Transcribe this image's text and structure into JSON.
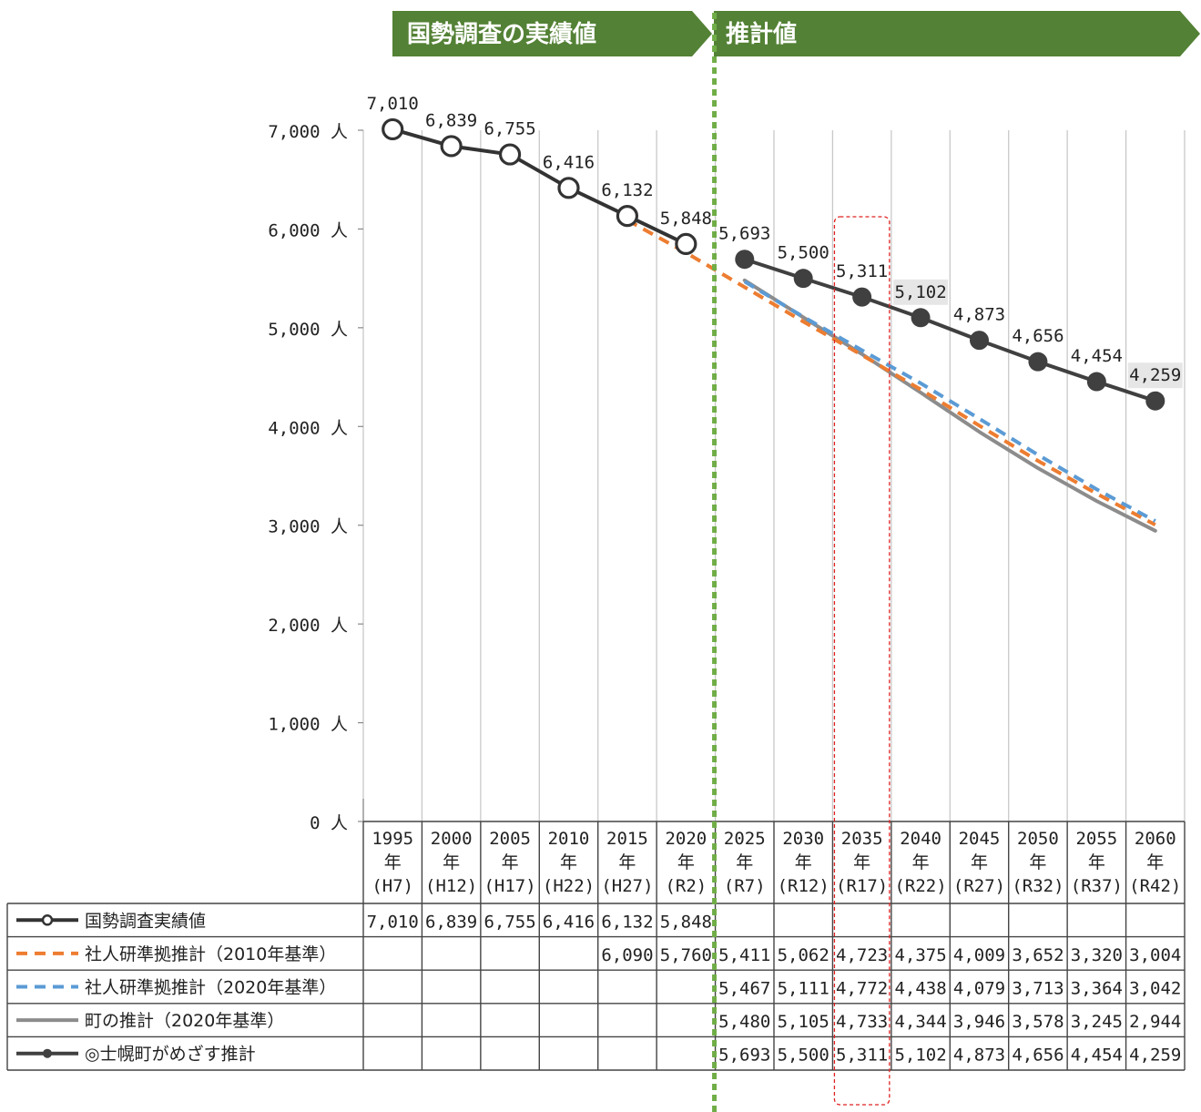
{
  "banners": {
    "actual": "国勢調査の実績値",
    "estimate": "推計値"
  },
  "colors": {
    "banner_green": "#538135",
    "divider_green": "#70ad47",
    "actual_line": "#333333",
    "ipss_2010": "#ed7d31",
    "ipss_2020": "#5b9bd5",
    "town_estimate": "#8c8c8c",
    "target_line": "#404040",
    "highlight_box": "#e02020",
    "grid": "#c8c8c8"
  },
  "chart_data": {
    "type": "line",
    "x": [
      "1995",
      "2000",
      "2005",
      "2010",
      "2015",
      "2020",
      "2025",
      "2030",
      "2035",
      "2040",
      "2045",
      "2050",
      "2055",
      "2060"
    ],
    "categories": [
      {
        "year": "1995",
        "unit": "年",
        "era": "(H7)"
      },
      {
        "year": "2000",
        "unit": "年",
        "era": "(H12)"
      },
      {
        "year": "2005",
        "unit": "年",
        "era": "(H17)"
      },
      {
        "year": "2010",
        "unit": "年",
        "era": "(H22)"
      },
      {
        "year": "2015",
        "unit": "年",
        "era": "(H27)"
      },
      {
        "year": "2020",
        "unit": "年",
        "era": "(R2)"
      },
      {
        "year": "2025",
        "unit": "年",
        "era": "(R7)"
      },
      {
        "year": "2030",
        "unit": "年",
        "era": "(R12)"
      },
      {
        "year": "2035",
        "unit": "年",
        "era": "(R17)"
      },
      {
        "year": "2040",
        "unit": "年",
        "era": "(R22)"
      },
      {
        "year": "2045",
        "unit": "年",
        "era": "(R27)"
      },
      {
        "year": "2050",
        "unit": "年",
        "era": "(R32)"
      },
      {
        "year": "2055",
        "unit": "年",
        "era": "(R37)"
      },
      {
        "year": "2060",
        "unit": "年",
        "era": "(R42)"
      }
    ],
    "y_ticks": [
      "0 人",
      "1,000 人",
      "2,000 人",
      "3,000 人",
      "4,000 人",
      "5,000 人",
      "6,000 人",
      "7,000 人"
    ],
    "ylim": [
      0,
      7000
    ],
    "grid": "vertical",
    "highlight_category": "2035",
    "divider_between": [
      "2020",
      "2025"
    ],
    "series": [
      {
        "name": "国勢調査実績値",
        "style": "open-marker",
        "labeled": true,
        "values": [
          7010,
          6839,
          6755,
          6416,
          6132,
          5848,
          null,
          null,
          null,
          null,
          null,
          null,
          null,
          null
        ],
        "labels": [
          "7,010",
          "6,839",
          "6,755",
          "6,416",
          "6,132",
          "5,848",
          "",
          "",
          "",
          "",
          "",
          "",
          "",
          ""
        ],
        "table": [
          "7,010",
          "6,839",
          "6,755",
          "6,416",
          "6,132",
          "5,848",
          "",
          "",
          "",
          "",
          "",
          "",
          "",
          ""
        ]
      },
      {
        "name": "社人研準拠推計（2010年基準）",
        "style": "dashed-orange",
        "labeled": false,
        "values": [
          null,
          null,
          null,
          null,
          6090,
          5760,
          5411,
          5062,
          4723,
          4375,
          4009,
          3652,
          3320,
          3004
        ],
        "table": [
          "",
          "",
          "",
          "",
          "6,090",
          "5,760",
          "5,411",
          "5,062",
          "4,723",
          "4,375",
          "4,009",
          "3,652",
          "3,320",
          "3,004"
        ]
      },
      {
        "name": "社人研準拠推計（2020年基準）",
        "style": "dashed-blue",
        "labeled": false,
        "values": [
          null,
          null,
          null,
          null,
          null,
          null,
          5467,
          5111,
          4772,
          4438,
          4079,
          3713,
          3364,
          3042
        ],
        "table": [
          "",
          "",
          "",
          "",
          "",
          "",
          "5,467",
          "5,111",
          "4,772",
          "4,438",
          "4,079",
          "3,713",
          "3,364",
          "3,042"
        ]
      },
      {
        "name": "町の推計（2020年基準）",
        "style": "solid-gray",
        "labeled": false,
        "values": [
          null,
          null,
          null,
          null,
          null,
          null,
          5480,
          5105,
          4733,
          4344,
          3946,
          3578,
          3245,
          2944
        ],
        "table": [
          "",
          "",
          "",
          "",
          "",
          "",
          "5,480",
          "5,105",
          "4,733",
          "4,344",
          "3,946",
          "3,578",
          "3,245",
          "2,944"
        ]
      },
      {
        "name": "◎士幌町がめざす推計",
        "style": "filled-marker",
        "labeled": true,
        "values": [
          null,
          null,
          null,
          null,
          null,
          null,
          5693,
          5500,
          5311,
          5102,
          4873,
          4656,
          4454,
          4259
        ],
        "labels": [
          "",
          "",
          "",
          "",
          "",
          "",
          "5,693",
          "5,500",
          "5,311",
          "5,102",
          "4,873",
          "4,656",
          "4,454",
          "4,259"
        ],
        "boxed_labels": [
          "5,102",
          "4,259"
        ],
        "table": [
          "",
          "",
          "",
          "",
          "",
          "",
          "5,693",
          "5,500",
          "5,311",
          "5,102",
          "4,873",
          "4,656",
          "4,454",
          "4,259"
        ]
      }
    ]
  }
}
